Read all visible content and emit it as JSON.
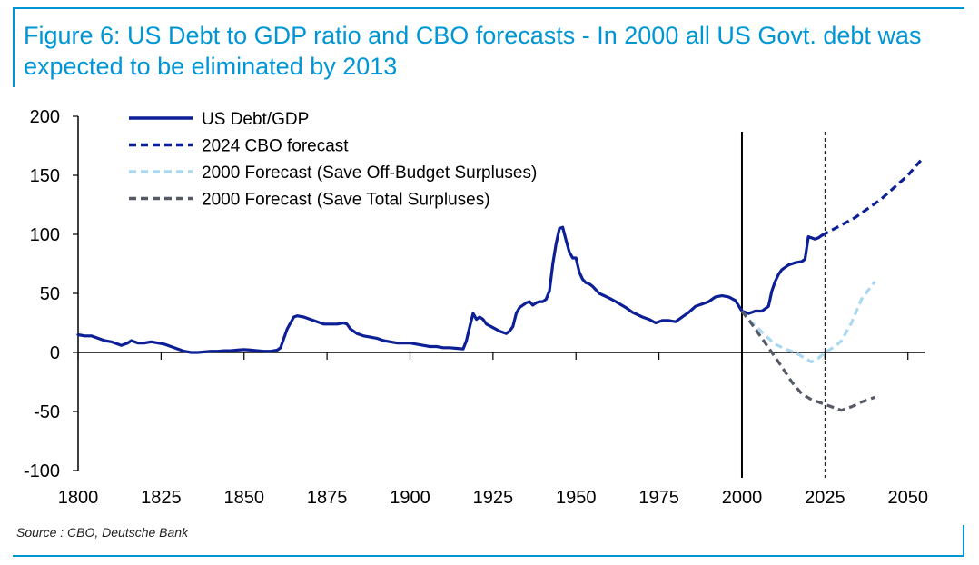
{
  "figure": {
    "title": "Figure 6: US Debt to GDP ratio and CBO forecasts - In 2000 all US Govt. debt was expected to be eliminated by 2013",
    "source": "Source : CBO, Deutsche Bank"
  },
  "chart_data": {
    "type": "line",
    "title": "Figure 6: US Debt to GDP ratio and CBO forecasts - In 2000 all US Govt. debt was expected to be eliminated by 2013",
    "xlabel": "",
    "ylabel": "",
    "xlim": [
      1800,
      2055
    ],
    "ylim": [
      -100,
      200
    ],
    "x_ticks": [
      1800,
      1825,
      1850,
      1875,
      1900,
      1925,
      1950,
      1975,
      2000,
      2025,
      2050
    ],
    "y_ticks": [
      -100,
      -50,
      0,
      50,
      100,
      150,
      200
    ],
    "x_tick_labels": [
      "1800",
      "1825",
      "1850",
      "1875",
      "1900",
      "1925",
      "1950",
      "1975",
      "2000",
      "2025",
      "2050"
    ],
    "y_tick_labels": [
      "-100",
      "-50",
      "0",
      "50",
      "100",
      "150",
      "200"
    ],
    "grid": false,
    "legend_position": "top-left",
    "reference_lines": [
      {
        "x": 2000,
        "style": "solid",
        "color": "#000000"
      },
      {
        "x": 2025,
        "style": "dashed",
        "color": "#000000"
      }
    ],
    "series": [
      {
        "name": "US Debt/GDP",
        "style": "solid",
        "color": "#0c1f96",
        "points": [
          [
            1800,
            15
          ],
          [
            1802,
            14
          ],
          [
            1804,
            14
          ],
          [
            1806,
            12
          ],
          [
            1808,
            10
          ],
          [
            1810,
            9
          ],
          [
            1812,
            7
          ],
          [
            1813,
            6
          ],
          [
            1815,
            8
          ],
          [
            1816,
            10
          ],
          [
            1818,
            8
          ],
          [
            1820,
            8
          ],
          [
            1822,
            9
          ],
          [
            1824,
            8
          ],
          [
            1826,
            7
          ],
          [
            1828,
            5
          ],
          [
            1830,
            3
          ],
          [
            1832,
            1
          ],
          [
            1834,
            0
          ],
          [
            1836,
            0
          ],
          [
            1838,
            0.5
          ],
          [
            1840,
            1
          ],
          [
            1842,
            1
          ],
          [
            1844,
            1.5
          ],
          [
            1846,
            1.5
          ],
          [
            1848,
            2
          ],
          [
            1850,
            2.5
          ],
          [
            1852,
            2
          ],
          [
            1854,
            1.5
          ],
          [
            1856,
            1
          ],
          [
            1858,
            1
          ],
          [
            1860,
            2
          ],
          [
            1861,
            4
          ],
          [
            1862,
            12
          ],
          [
            1863,
            20
          ],
          [
            1864,
            25
          ],
          [
            1865,
            30
          ],
          [
            1866,
            31
          ],
          [
            1868,
            30
          ],
          [
            1870,
            28
          ],
          [
            1872,
            26
          ],
          [
            1874,
            24
          ],
          [
            1876,
            24
          ],
          [
            1878,
            24
          ],
          [
            1880,
            25
          ],
          [
            1881,
            24
          ],
          [
            1882,
            20
          ],
          [
            1884,
            16
          ],
          [
            1886,
            14
          ],
          [
            1888,
            13
          ],
          [
            1890,
            12
          ],
          [
            1892,
            10
          ],
          [
            1894,
            9
          ],
          [
            1896,
            8
          ],
          [
            1898,
            8
          ],
          [
            1900,
            8
          ],
          [
            1902,
            7
          ],
          [
            1904,
            6
          ],
          [
            1906,
            5
          ],
          [
            1908,
            5
          ],
          [
            1910,
            4
          ],
          [
            1912,
            4
          ],
          [
            1914,
            3.5
          ],
          [
            1916,
            3
          ],
          [
            1917,
            10
          ],
          [
            1918,
            22
          ],
          [
            1919,
            33
          ],
          [
            1920,
            28
          ],
          [
            1921,
            30
          ],
          [
            1922,
            28
          ],
          [
            1923,
            24
          ],
          [
            1925,
            21
          ],
          [
            1927,
            18
          ],
          [
            1929,
            16
          ],
          [
            1930,
            18
          ],
          [
            1931,
            22
          ],
          [
            1932,
            33
          ],
          [
            1933,
            38
          ],
          [
            1934,
            40
          ],
          [
            1935,
            42
          ],
          [
            1936,
            43
          ],
          [
            1937,
            40
          ],
          [
            1938,
            42
          ],
          [
            1939,
            43
          ],
          [
            1940,
            43
          ],
          [
            1941,
            45
          ],
          [
            1942,
            52
          ],
          [
            1943,
            75
          ],
          [
            1944,
            92
          ],
          [
            1945,
            105
          ],
          [
            1946,
            106
          ],
          [
            1947,
            95
          ],
          [
            1948,
            85
          ],
          [
            1949,
            80
          ],
          [
            1950,
            80
          ],
          [
            1951,
            68
          ],
          [
            1952,
            62
          ],
          [
            1953,
            59
          ],
          [
            1954,
            58
          ],
          [
            1955,
            56
          ],
          [
            1957,
            50
          ],
          [
            1960,
            46
          ],
          [
            1962,
            43
          ],
          [
            1965,
            38
          ],
          [
            1967,
            34
          ],
          [
            1970,
            30
          ],
          [
            1972,
            28
          ],
          [
            1974,
            25
          ],
          [
            1976,
            27
          ],
          [
            1978,
            27
          ],
          [
            1980,
            26
          ],
          [
            1982,
            30
          ],
          [
            1984,
            34
          ],
          [
            1986,
            39
          ],
          [
            1988,
            41
          ],
          [
            1990,
            43
          ],
          [
            1992,
            47
          ],
          [
            1994,
            48
          ],
          [
            1996,
            47
          ],
          [
            1998,
            44
          ],
          [
            2000,
            35
          ],
          [
            2002,
            33
          ],
          [
            2004,
            35
          ],
          [
            2006,
            35
          ],
          [
            2008,
            39
          ],
          [
            2009,
            52
          ],
          [
            2010,
            60
          ],
          [
            2011,
            66
          ],
          [
            2012,
            70
          ],
          [
            2014,
            74
          ],
          [
            2016,
            76
          ],
          [
            2018,
            77
          ],
          [
            2019,
            79
          ],
          [
            2020,
            98
          ],
          [
            2021,
            97
          ],
          [
            2022,
            96
          ],
          [
            2023,
            97
          ],
          [
            2024,
            99
          ]
        ]
      },
      {
        "name": "2024 CBO forecast",
        "style": "dashed",
        "color": "#0c1f96",
        "points": [
          [
            2024,
            99
          ],
          [
            2026,
            102
          ],
          [
            2028,
            105
          ],
          [
            2030,
            108
          ],
          [
            2034,
            114
          ],
          [
            2038,
            122
          ],
          [
            2042,
            130
          ],
          [
            2046,
            140
          ],
          [
            2050,
            150
          ],
          [
            2054,
            163
          ]
        ]
      },
      {
        "name": "2000 Forecast (Save Off-Budget Surpluses)",
        "style": "dashed",
        "color": "#a9d8f0",
        "points": [
          [
            2000,
            35
          ],
          [
            2002,
            28
          ],
          [
            2005,
            20
          ],
          [
            2008,
            12
          ],
          [
            2010,
            7
          ],
          [
            2013,
            3
          ],
          [
            2016,
            0
          ],
          [
            2019,
            -5
          ],
          [
            2021,
            -8
          ],
          [
            2023,
            -5
          ],
          [
            2025,
            0
          ],
          [
            2028,
            5
          ],
          [
            2030,
            10
          ],
          [
            2033,
            25
          ],
          [
            2036,
            45
          ],
          [
            2040,
            60
          ]
        ]
      },
      {
        "name": "2000 Forecast (Save Total Surpluses)",
        "style": "dashed",
        "color": "#555a66",
        "points": [
          [
            2000,
            35
          ],
          [
            2003,
            24
          ],
          [
            2006,
            12
          ],
          [
            2009,
            0
          ],
          [
            2012,
            -12
          ],
          [
            2015,
            -25
          ],
          [
            2018,
            -35
          ],
          [
            2021,
            -40
          ],
          [
            2025,
            -44
          ],
          [
            2028,
            -47
          ],
          [
            2030,
            -49
          ],
          [
            2033,
            -46
          ],
          [
            2036,
            -42
          ],
          [
            2040,
            -38
          ]
        ]
      }
    ]
  }
}
